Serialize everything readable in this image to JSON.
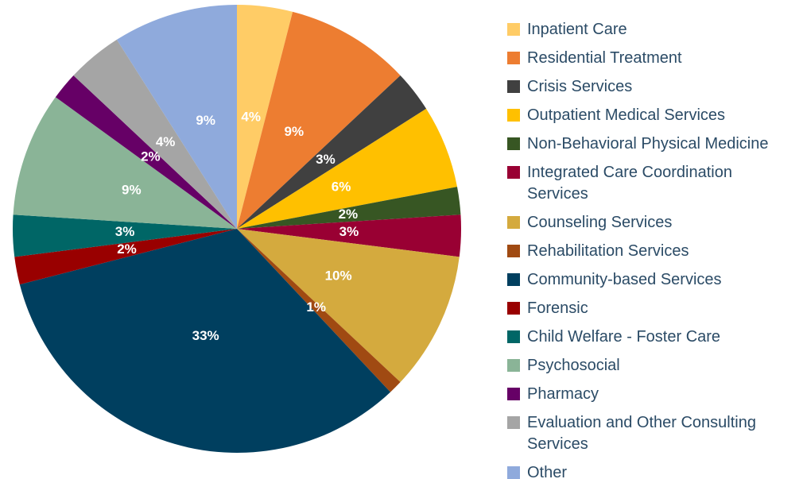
{
  "chart_data": {
    "type": "pie",
    "categories": [
      "Inpatient Care",
      "Residential Treatment",
      "Crisis Services",
      "Outpatient Medical Services",
      "Non-Behavioral Physical Medicine",
      "Integrated Care Coordination Services",
      "Counseling Services",
      "Rehabilitation Services",
      "Community-based Services",
      "Forensic",
      "Child Welfare - Foster Care",
      "Psychosocial",
      "Pharmacy",
      "Evaluation and Other Consulting Services",
      "Other"
    ],
    "values": [
      4,
      9,
      3,
      6,
      2,
      3,
      10,
      1,
      33,
      2,
      3,
      9,
      2,
      4,
      9
    ],
    "value_labels": [
      "4%",
      "9%",
      "3%",
      "6%",
      "2%",
      "3%",
      "10%",
      "1%",
      "33%",
      "2%",
      "3%",
      "9%",
      "2%",
      "4%",
      "9%"
    ],
    "colors": [
      "#FFCC66",
      "#ED7D31",
      "#404040",
      "#FFC000",
      "#375623",
      "#990033",
      "#D4AA3E",
      "#A04A12",
      "#003F5F",
      "#990000",
      "#006666",
      "#8AB497",
      "#660066",
      "#A5A5A5",
      "#8FAADC"
    ],
    "legend": "right"
  }
}
